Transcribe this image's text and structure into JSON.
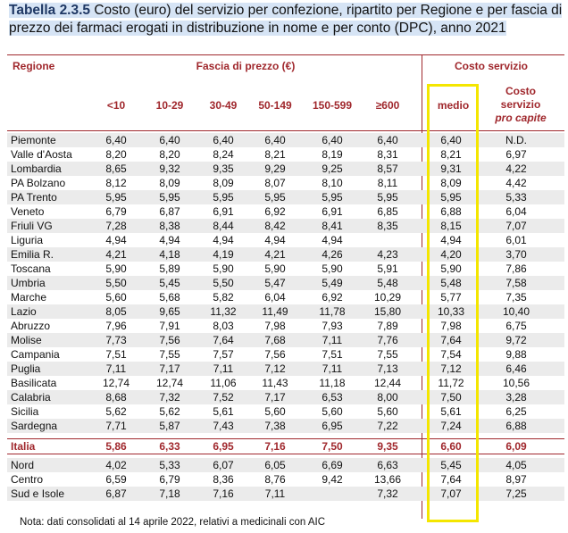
{
  "title": {
    "number": "Tabella 2.3.5",
    "text": "Costo (euro) del servizio per confezione, ripartito per Regione e per fascia di prezzo dei farmaci erogati in distribuzione in nome e per conto (DPC), anno 2021"
  },
  "headers": {
    "regione": "Regione",
    "fascia": "Fascia di prezzo (€)",
    "costo": "Costo servizio",
    "cols": [
      "<10",
      "10-29",
      "30-49",
      "50-149",
      "150-599",
      "≥600"
    ],
    "medio": "medio",
    "capite1": "Costo",
    "capite2": "servizio",
    "capite3": "pro capite"
  },
  "rows": [
    {
      "r": "Piemonte",
      "v": [
        "6,40",
        "6,40",
        "6,40",
        "6,40",
        "6,40",
        "6,40",
        "6,40",
        "N.D."
      ]
    },
    {
      "r": "Valle d'Aosta",
      "v": [
        "8,20",
        "8,20",
        "8,24",
        "8,21",
        "8,19",
        "8,31",
        "8,21",
        "6,97"
      ]
    },
    {
      "r": "Lombardia",
      "v": [
        "8,65",
        "9,32",
        "9,35",
        "9,29",
        "9,25",
        "8,57",
        "9,31",
        "4,22"
      ]
    },
    {
      "r": "PA Bolzano",
      "v": [
        "8,12",
        "8,09",
        "8,09",
        "8,07",
        "8,10",
        "8,11",
        "8,09",
        "4,42"
      ]
    },
    {
      "r": "PA Trento",
      "v": [
        "5,95",
        "5,95",
        "5,95",
        "5,95",
        "5,95",
        "5,95",
        "5,95",
        "5,33"
      ]
    },
    {
      "r": "Veneto",
      "v": [
        "6,79",
        "6,87",
        "6,91",
        "6,92",
        "6,91",
        "6,85",
        "6,88",
        "6,04"
      ]
    },
    {
      "r": "Friuli VG",
      "v": [
        "7,28",
        "8,38",
        "8,44",
        "8,42",
        "8,41",
        "8,35",
        "8,15",
        "7,07"
      ]
    },
    {
      "r": "Liguria",
      "v": [
        "4,94",
        "4,94",
        "4,94",
        "4,94",
        "4,94",
        "",
        "4,94",
        "6,01"
      ]
    },
    {
      "r": "Emilia R.",
      "v": [
        "4,21",
        "4,18",
        "4,19",
        "4,21",
        "4,26",
        "4,23",
        "4,20",
        "3,70"
      ]
    },
    {
      "r": "Toscana",
      "v": [
        "5,90",
        "5,89",
        "5,90",
        "5,90",
        "5,90",
        "5,91",
        "5,90",
        "7,86"
      ]
    },
    {
      "r": "Umbria",
      "v": [
        "5,50",
        "5,45",
        "5,50",
        "5,47",
        "5,49",
        "5,48",
        "5,48",
        "7,58"
      ]
    },
    {
      "r": "Marche",
      "v": [
        "5,60",
        "5,68",
        "5,82",
        "6,04",
        "6,92",
        "10,29",
        "5,77",
        "7,35"
      ]
    },
    {
      "r": "Lazio",
      "v": [
        "8,05",
        "9,65",
        "11,32",
        "11,49",
        "11,78",
        "15,80",
        "10,33",
        "10,40"
      ]
    },
    {
      "r": "Abruzzo",
      "v": [
        "7,96",
        "7,91",
        "8,03",
        "7,98",
        "7,93",
        "7,89",
        "7,98",
        "6,75"
      ]
    },
    {
      "r": "Molise",
      "v": [
        "7,73",
        "7,56",
        "7,64",
        "7,68",
        "7,11",
        "7,76",
        "7,64",
        "9,72"
      ]
    },
    {
      "r": "Campania",
      "v": [
        "7,51",
        "7,55",
        "7,57",
        "7,56",
        "7,51",
        "7,55",
        "7,54",
        "9,88"
      ]
    },
    {
      "r": "Puglia",
      "v": [
        "7,11",
        "7,17",
        "7,11",
        "7,12",
        "7,11",
        "7,13",
        "7,12",
        "6,46"
      ]
    },
    {
      "r": "Basilicata",
      "v": [
        "12,74",
        "12,74",
        "11,06",
        "11,43",
        "11,18",
        "12,44",
        "11,72",
        "10,56"
      ]
    },
    {
      "r": "Calabria",
      "v": [
        "8,68",
        "7,32",
        "7,52",
        "7,17",
        "6,53",
        "8,00",
        "7,50",
        "3,28"
      ]
    },
    {
      "r": "Sicilia",
      "v": [
        "5,62",
        "5,62",
        "5,61",
        "5,60",
        "5,60",
        "5,60",
        "5,61",
        "6,25"
      ]
    },
    {
      "r": "Sardegna",
      "v": [
        "7,71",
        "5,87",
        "7,43",
        "7,38",
        "6,95",
        "7,22",
        "7,24",
        "6,88"
      ]
    },
    {
      "r": "Italia",
      "v": [
        "5,86",
        "6,33",
        "6,95",
        "7,16",
        "7,50",
        "9,35",
        "6,60",
        "6,09"
      ],
      "italia": true
    },
    {
      "r": "Nord",
      "v": [
        "4,02",
        "5,33",
        "6,07",
        "6,05",
        "6,69",
        "6,63",
        "5,45",
        "4,05"
      ]
    },
    {
      "r": "Centro",
      "v": [
        "6,59",
        "6,79",
        "8,36",
        "8,76",
        "9,42",
        "13,66",
        "7,64",
        "8,97"
      ]
    },
    {
      "r": "Sud e Isole",
      "v": [
        "6,87",
        "7,18",
        "7,16",
        "7,11",
        "",
        "7,32",
        "7,07",
        "7,25"
      ]
    }
  ],
  "note": "Nota: dati consolidati al 14 aprile 2022, relativi a medicinali con AIC",
  "colors": {
    "accent": "#a0282d",
    "highlight": "#f4e600",
    "shade": "#ebebeb"
  }
}
